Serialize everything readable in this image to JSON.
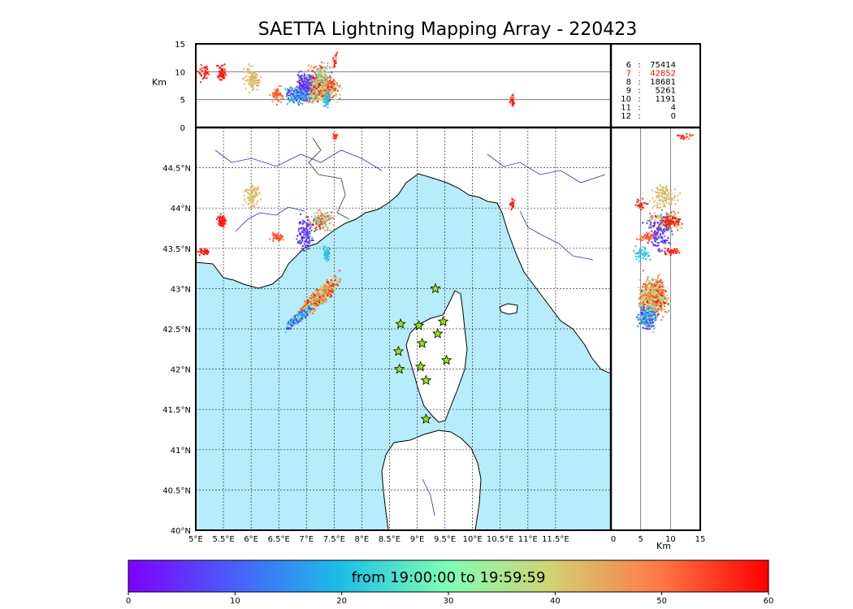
{
  "title": "SAETTA Lightning Mapping Array - 220423",
  "km_label": "Km",
  "count_table": [
    {
      "level": "6",
      "count": "75414",
      "highlight": false
    },
    {
      "level": "7",
      "count": "42852",
      "highlight": true
    },
    {
      "level": "8",
      "count": "18681",
      "highlight": false
    },
    {
      "level": "9",
      "count": "5261",
      "highlight": false
    },
    {
      "level": "10",
      "count": "1191",
      "highlight": false
    },
    {
      "level": "11",
      "count": "4",
      "highlight": false
    },
    {
      "level": "12",
      "count": "0",
      "highlight": false
    }
  ],
  "colors": {
    "sea": "#b6ecfb",
    "highlight": "#ff0000",
    "star": "#9ae600"
  },
  "colorbar": {
    "label": "from 19:00:00 to 19:59:59",
    "ticks": [
      "0",
      "10",
      "20",
      "30",
      "40",
      "50",
      "60"
    ],
    "range": [
      0,
      60
    ]
  },
  "chart_data": {
    "type": "scatter",
    "map": {
      "lon_range": [
        5,
        12.5
      ],
      "lat_range": [
        40,
        45
      ],
      "lon_ticks": [
        "5°E",
        "5.5°E",
        "6°E",
        "6.5°E",
        "7°E",
        "7.5°E",
        "8°E",
        "8.5°E",
        "9°E",
        "9.5°E",
        "10°E",
        "10.5°E",
        "11°E",
        "11.5°E"
      ],
      "lat_ticks": [
        "40°N",
        "40.5°N",
        "41°N",
        "41.5°N",
        "42°N",
        "42.5°N",
        "43°N",
        "43.5°N",
        "44°N",
        "44.5°N"
      ],
      "grid": true
    },
    "top_panel": {
      "ylabel": "Km",
      "yticks": [
        "0",
        "5",
        "10",
        "15"
      ],
      "ylim": [
        0,
        15
      ]
    },
    "side_panel": {
      "xlabel": "Km",
      "xticks": [
        "0",
        "5",
        "10",
        "15"
      ],
      "xlim": [
        0,
        15
      ]
    },
    "stations": [
      [
        9.33,
        43.0
      ],
      [
        8.7,
        42.56
      ],
      [
        9.03,
        42.54
      ],
      [
        9.47,
        42.59
      ],
      [
        9.37,
        42.44
      ],
      [
        9.09,
        42.32
      ],
      [
        8.66,
        42.22
      ],
      [
        9.06,
        42.03
      ],
      [
        8.68,
        42.0
      ],
      [
        9.53,
        42.11
      ],
      [
        9.16,
        41.86
      ],
      [
        9.16,
        41.38
      ]
    ],
    "clusters": [
      {
        "lon": 7.2,
        "lat": 42.9,
        "lon_spread": 0.45,
        "lat_spread": 0.3,
        "alt": 7,
        "alt_spread": 3,
        "time_min": 30,
        "time_max": 60,
        "n": 900,
        "shape": "diag"
      },
      {
        "lon": 6.85,
        "lat": 42.65,
        "lon_spread": 0.3,
        "lat_spread": 0.15,
        "alt": 6,
        "alt_spread": 2,
        "time_min": 0,
        "time_max": 35,
        "n": 350,
        "shape": "diag"
      },
      {
        "lon": 7.25,
        "lat": 43.85,
        "lon_spread": 0.3,
        "lat_spread": 0.15,
        "alt": 9,
        "alt_spread": 4,
        "time_min": 20,
        "time_max": 60,
        "n": 180,
        "shape": "blob"
      },
      {
        "lon": 6.95,
        "lat": 43.7,
        "lon_spread": 0.2,
        "lat_spread": 0.3,
        "alt": 8,
        "alt_spread": 3,
        "time_min": 0,
        "time_max": 12,
        "n": 120,
        "shape": "blob"
      },
      {
        "lon": 6.0,
        "lat": 44.15,
        "lon_spread": 0.2,
        "lat_spread": 0.18,
        "alt": 9,
        "alt_spread": 3,
        "time_min": 38,
        "time_max": 46,
        "n": 110,
        "shape": "blob"
      },
      {
        "lon": 5.45,
        "lat": 43.85,
        "lon_spread": 0.1,
        "lat_spread": 0.1,
        "alt": 10,
        "alt_spread": 2,
        "time_min": 55,
        "time_max": 60,
        "n": 60,
        "shape": "blob"
      },
      {
        "lon": 6.45,
        "lat": 43.65,
        "lon_spread": 0.15,
        "lat_spread": 0.08,
        "alt": 6,
        "alt_spread": 2,
        "time_min": 48,
        "time_max": 55,
        "n": 60,
        "shape": "blob"
      },
      {
        "lon": 7.35,
        "lat": 43.45,
        "lon_spread": 0.08,
        "lat_spread": 0.12,
        "alt": 5,
        "alt_spread": 2,
        "time_min": 18,
        "time_max": 22,
        "n": 45,
        "shape": "blob"
      },
      {
        "lon": 5.15,
        "lat": 43.47,
        "lon_spread": 0.15,
        "lat_spread": 0.05,
        "alt": 10,
        "alt_spread": 2,
        "time_min": 55,
        "time_max": 60,
        "n": 35,
        "shape": "blob"
      },
      {
        "lon": 10.7,
        "lat": 44.05,
        "lon_spread": 0.07,
        "lat_spread": 0.1,
        "alt": 5,
        "alt_spread": 2,
        "time_min": 55,
        "time_max": 60,
        "n": 25,
        "shape": "blob"
      },
      {
        "lon": 7.5,
        "lat": 44.9,
        "lon_spread": 0.05,
        "lat_spread": 0.05,
        "alt": 12,
        "alt_spread": 2,
        "time_min": 50,
        "time_max": 60,
        "n": 20,
        "shape": "blob"
      }
    ]
  }
}
